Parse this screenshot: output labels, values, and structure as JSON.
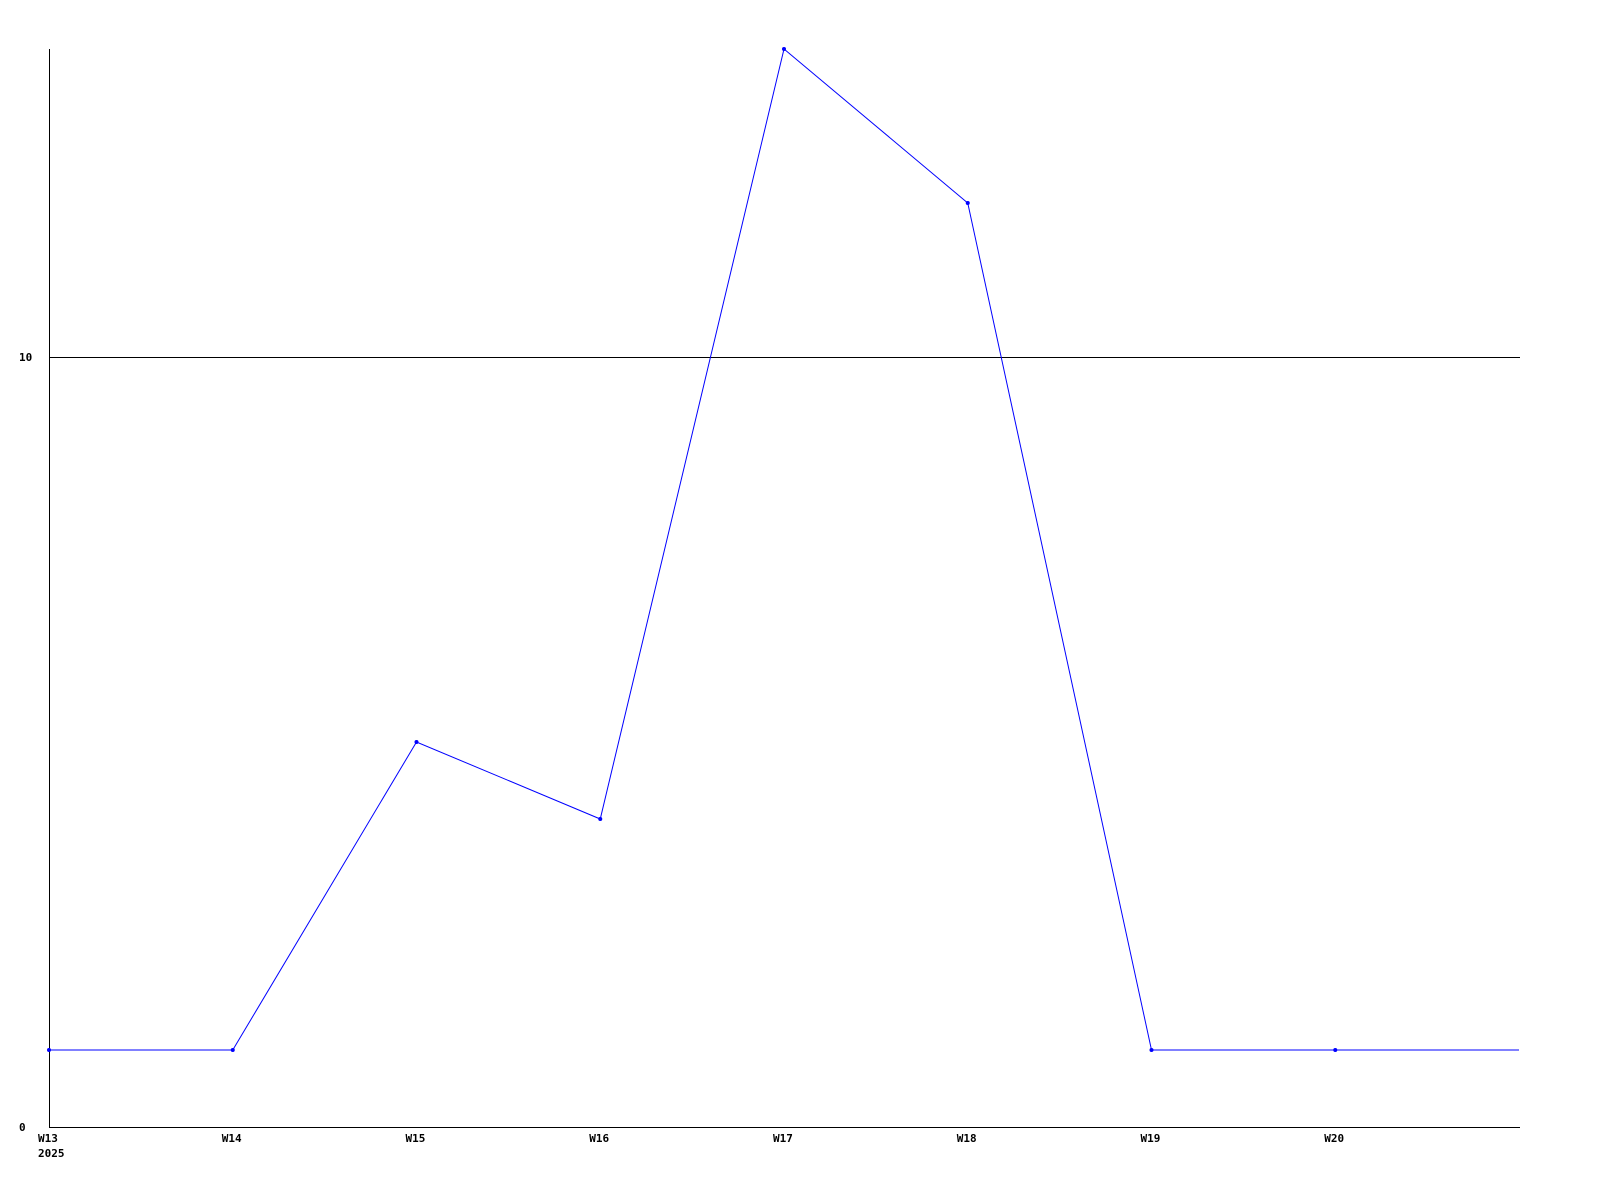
{
  "chart_data": {
    "type": "line",
    "title": "",
    "xlabel": "",
    "ylabel": "",
    "categories": [
      "W13",
      "W14",
      "W15",
      "W16",
      "W17",
      "W18",
      "W19",
      "W20",
      ""
    ],
    "x_sublabel": "2025",
    "series": [
      {
        "values": [
          1,
          1,
          5,
          4,
          14,
          12,
          1,
          1,
          1
        ],
        "color": "#0000ff"
      }
    ],
    "ylim": [
      0,
      14
    ],
    "yticks": [
      0,
      10
    ],
    "ytick_labels": [
      "0",
      "10"
    ],
    "grid": "horizontal line at 10",
    "legend": "none"
  }
}
